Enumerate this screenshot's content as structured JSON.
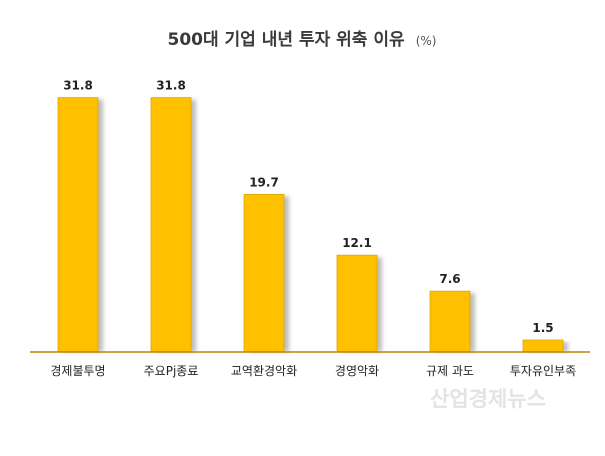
{
  "title": {
    "main": "500대 기업 내년 투자 위축 이유",
    "unit": "(%)"
  },
  "watermark": "산업경제뉴스",
  "colors": {
    "bar": "#FFC000",
    "bar_edge": "#E0A800",
    "axis": "#B8860B",
    "shadow": "#bdbdbd"
  },
  "chart_data": {
    "type": "bar",
    "title": "500대 기업 내년 투자 위축 이유 (%)",
    "categories": [
      "경제불투명",
      "주요Pj종료",
      "교역환경악화",
      "경영악화",
      "규제 과도",
      "투자유인부족"
    ],
    "values": [
      31.8,
      31.8,
      19.7,
      12.1,
      7.6,
      1.5
    ],
    "value_labels": [
      "31.8",
      "31.8",
      "19.7",
      "12.1",
      "7.6",
      "1.5"
    ],
    "xlabel": "",
    "ylabel": "",
    "ylim": [
      0,
      35
    ],
    "grid": false,
    "legend": "none"
  }
}
